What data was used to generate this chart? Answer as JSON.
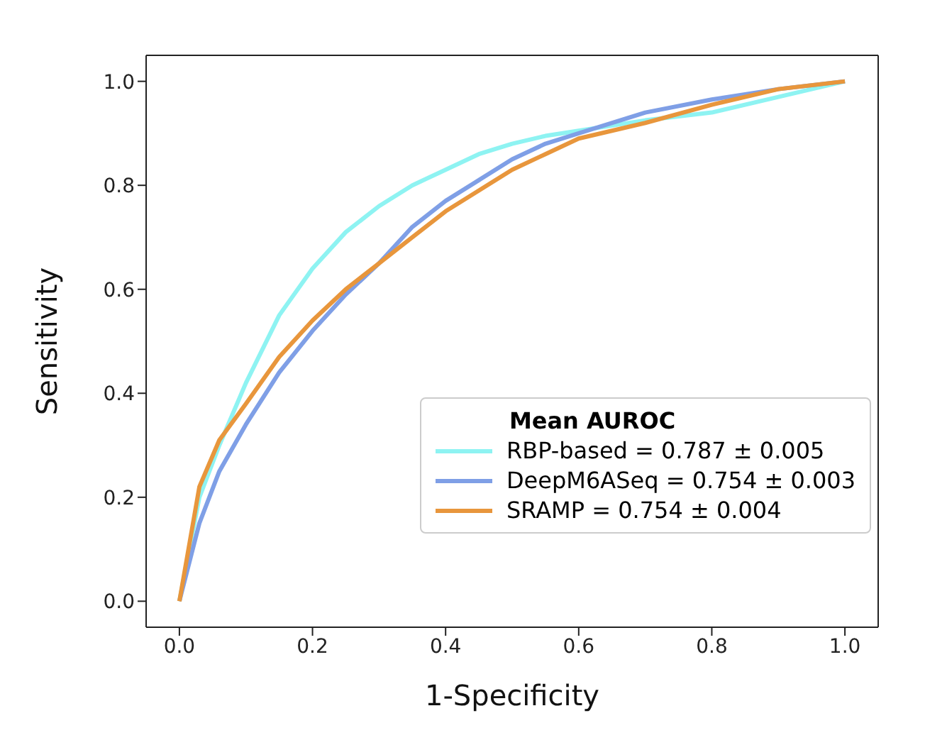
{
  "chart_data": {
    "type": "line",
    "xlabel": "1-Specificity",
    "ylabel": "Sensitivity",
    "legend_title": "Mean AUROC",
    "legend": "bottom right",
    "grid": false,
    "marker": "none",
    "line_style": "solid",
    "xlim": [
      -0.05,
      1.05
    ],
    "ylim": [
      -0.05,
      1.05
    ],
    "xticks": [
      {
        "value": 0,
        "label": "0.0"
      },
      {
        "value": 0.2,
        "label": "0.2"
      },
      {
        "value": 0.4,
        "label": "0.4"
      },
      {
        "value": 0.6,
        "label": "0.6"
      },
      {
        "value": 0.8,
        "label": "0.8"
      },
      {
        "value": 1,
        "label": "1.0"
      }
    ],
    "yticks": [
      {
        "value": 0,
        "label": "0.0"
      },
      {
        "value": 0.2,
        "label": "0.2"
      },
      {
        "value": 0.4,
        "label": "0.4"
      },
      {
        "value": 0.6,
        "label": "0.6"
      },
      {
        "value": 0.8,
        "label": "0.8"
      },
      {
        "value": 1,
        "label": "1.0"
      }
    ],
    "series": [
      {
        "name": "RBP-based = 0.787 ± 0.005",
        "color": "#8ef3f2",
        "x": [
          0,
          0.03,
          0.06,
          0.1,
          0.15,
          0.2,
          0.25,
          0.3,
          0.35,
          0.4,
          0.45,
          0.5,
          0.55,
          0.6,
          0.7,
          0.8,
          0.9,
          1
        ],
        "values": [
          0,
          0.2,
          0.3,
          0.42,
          0.55,
          0.64,
          0.71,
          0.76,
          0.8,
          0.83,
          0.86,
          0.88,
          0.895,
          0.905,
          0.925,
          0.94,
          0.97,
          1
        ]
      },
      {
        "name": "DeepM6ASeq = 0.754 ± 0.003",
        "color": "#7f9fe6",
        "x": [
          0,
          0.03,
          0.06,
          0.1,
          0.15,
          0.2,
          0.25,
          0.3,
          0.35,
          0.4,
          0.45,
          0.5,
          0.55,
          0.6,
          0.7,
          0.8,
          0.9,
          1
        ],
        "values": [
          0,
          0.15,
          0.25,
          0.34,
          0.44,
          0.52,
          0.59,
          0.65,
          0.72,
          0.77,
          0.81,
          0.85,
          0.88,
          0.9,
          0.94,
          0.965,
          0.985,
          1
        ]
      },
      {
        "name": "SRAMP = 0.754 ± 0.004",
        "color": "#e8963c",
        "x": [
          0,
          0.03,
          0.06,
          0.1,
          0.15,
          0.2,
          0.25,
          0.3,
          0.35,
          0.4,
          0.45,
          0.5,
          0.55,
          0.6,
          0.7,
          0.8,
          0.9,
          1
        ],
        "values": [
          0,
          0.22,
          0.31,
          0.38,
          0.47,
          0.54,
          0.6,
          0.65,
          0.7,
          0.75,
          0.79,
          0.83,
          0.86,
          0.89,
          0.92,
          0.955,
          0.985,
          1
        ]
      }
    ]
  }
}
